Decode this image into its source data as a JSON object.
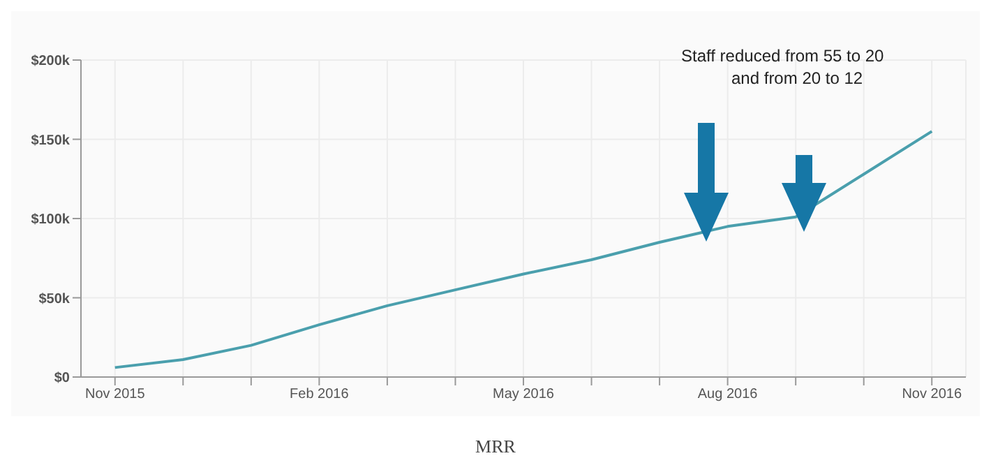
{
  "chart_data": {
    "type": "line",
    "title": "MRR",
    "x": [
      "2015-11",
      "2015-12",
      "2016-01",
      "2016-02",
      "2016-03",
      "2016-04",
      "2016-05",
      "2016-06",
      "2016-07",
      "2016-08",
      "2016-09",
      "2016-10",
      "2016-11"
    ],
    "series": [
      {
        "color": "#4a9fad",
        "values": [
          6,
          11,
          20,
          33,
          45,
          55,
          65,
          74,
          85,
          95,
          101,
          128,
          155
        ]
      }
    ],
    "xlim": [
      "2015-10-16",
      "2016-11-16"
    ],
    "xticks": [
      {
        "value": "2015-11",
        "label": "Nov 2015"
      },
      {
        "value": "2015-12",
        "label": null
      },
      {
        "value": "2016-01",
        "label": null
      },
      {
        "value": "2016-02",
        "label": "Feb 2016"
      },
      {
        "value": "2016-03",
        "label": null
      },
      {
        "value": "2016-04",
        "label": null
      },
      {
        "value": "2016-05",
        "label": "May 2016"
      },
      {
        "value": "2016-06",
        "label": null
      },
      {
        "value": "2016-07",
        "label": null
      },
      {
        "value": "2016-08",
        "label": "Aug 2016"
      },
      {
        "value": "2016-09",
        "label": null
      },
      {
        "value": "2016-10",
        "label": null
      },
      {
        "value": "2016-11",
        "label": "Nov 2016"
      }
    ],
    "ylim": [
      0,
      200
    ],
    "yticks": [
      {
        "value": 0,
        "label": "$0"
      },
      {
        "value": 50,
        "label": "$50k"
      },
      {
        "value": 100,
        "label": "$100k"
      },
      {
        "value": 150,
        "label": "$150k"
      },
      {
        "value": 200,
        "label": "$200k"
      }
    ],
    "grid": true,
    "legend": false,
    "marker": "none",
    "line_style": "solid",
    "annotations": [
      "Staff reduced from 55 to 20",
      "and from 20 to 12"
    ]
  }
}
